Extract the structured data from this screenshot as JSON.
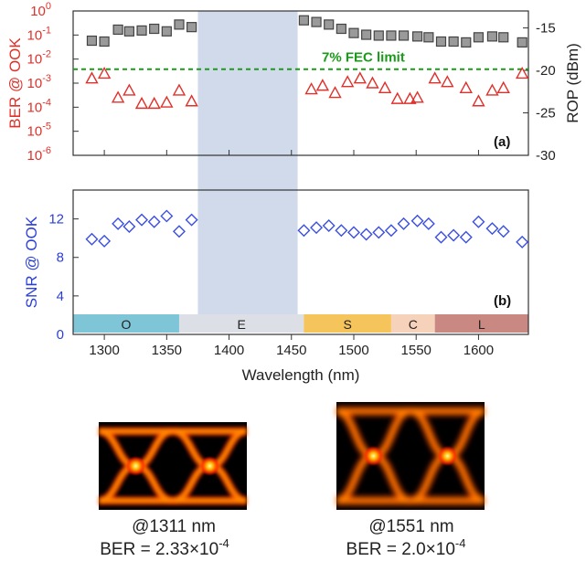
{
  "chart_data": [
    {
      "type": "scatter",
      "panel": "(a)",
      "xlim": [
        1275,
        1640
      ],
      "x_ticks": [
        1300,
        1350,
        1400,
        1450,
        1500,
        1550,
        1600
      ],
      "ylabel_left": "BER @ OOK",
      "ylabel_right": "ROP (dBm)",
      "yleft_log_range": [
        -6,
        0
      ],
      "yleft_tick_exponents": [
        -6,
        -5,
        -4,
        -3,
        -2,
        -1,
        0
      ],
      "yright_range": [
        -30,
        -13
      ],
      "yright_ticks": [
        -15,
        -20,
        -25,
        -30
      ],
      "shaded_band": [
        1375,
        1455
      ],
      "threshold": {
        "label": "7% FEC limit",
        "value_log10": -2.42,
        "color": "#1a9a1a"
      },
      "series": [
        {
          "axis": "left",
          "marker": "triangle",
          "color": "#e0302a",
          "x": [
            1290,
            1300,
            1311,
            1320,
            1330,
            1340,
            1350,
            1360,
            1370,
            1466,
            1475,
            1485,
            1495,
            1505,
            1515,
            1525,
            1535,
            1545,
            1551,
            1565,
            1575,
            1590,
            1600,
            1611,
            1620,
            1635
          ],
          "log10_y": [
            -2.8,
            -2.6,
            -3.6,
            -3.3,
            -3.85,
            -3.85,
            -3.8,
            -3.3,
            -3.75,
            -3.25,
            -3.1,
            -3.4,
            -2.95,
            -2.8,
            -3.0,
            -3.2,
            -3.65,
            -3.65,
            -3.6,
            -2.8,
            -2.95,
            -3.2,
            -3.75,
            -3.3,
            -3.2,
            -2.6
          ]
        },
        {
          "axis": "right",
          "marker": "square",
          "color": "#444444",
          "x": [
            1290,
            1300,
            1311,
            1320,
            1330,
            1340,
            1350,
            1360,
            1370,
            1460,
            1470,
            1480,
            1490,
            1500,
            1510,
            1520,
            1530,
            1540,
            1551,
            1560,
            1570,
            1580,
            1590,
            1600,
            1611,
            1620,
            1635
          ],
          "y": [
            -16.5,
            -16.6,
            -15.2,
            -15.4,
            -15.3,
            -15.1,
            -15.4,
            -14.6,
            -14.9,
            -14.1,
            -14.3,
            -14.6,
            -15.1,
            -15.6,
            -15.8,
            -15.9,
            -15.9,
            -15.9,
            -16.0,
            -16.1,
            -16.6,
            -16.6,
            -16.7,
            -16.1,
            -16.0,
            -16.1,
            -16.7
          ]
        }
      ]
    },
    {
      "type": "scatter",
      "panel": "(b)",
      "xlabel": "Wavelength (nm)",
      "ylabel": "SNR @ OOK",
      "ylim": [
        0,
        15
      ],
      "y_ticks": [
        0,
        4,
        8,
        12
      ],
      "series": [
        {
          "marker": "diamond",
          "color": "#3b4fe0",
          "x": [
            1290,
            1300,
            1311,
            1320,
            1330,
            1340,
            1350,
            1360,
            1370,
            1460,
            1470,
            1480,
            1490,
            1500,
            1510,
            1520,
            1530,
            1540,
            1551,
            1560,
            1570,
            1580,
            1590,
            1600,
            1611,
            1620,
            1635
          ],
          "y": [
            9.9,
            9.7,
            11.5,
            11.2,
            11.9,
            11.7,
            12.3,
            10.7,
            11.9,
            10.8,
            11.1,
            11.3,
            10.8,
            10.6,
            10.4,
            10.6,
            10.8,
            11.5,
            11.8,
            11.5,
            10.1,
            10.3,
            10.1,
            11.7,
            11.0,
            10.7,
            9.6
          ]
        }
      ],
      "bands": [
        {
          "label": "O",
          "range": [
            1275,
            1360
          ],
          "color": "#7ec5d8"
        },
        {
          "label": "E",
          "range": [
            1360,
            1460
          ],
          "color": "#dcdfe6"
        },
        {
          "label": "S",
          "range": [
            1460,
            1530
          ],
          "color": "#f5c45a"
        },
        {
          "label": "C",
          "range": [
            1530,
            1565
          ],
          "color": "#f7d2ba"
        },
        {
          "label": "L",
          "range": [
            1565,
            1640
          ],
          "color": "#c98882"
        }
      ]
    }
  ],
  "eye_diagrams": [
    {
      "caption_wavelength": "@1311 nm",
      "caption_ber": "BER = 2.33×10",
      "ber_exp": "-4"
    },
    {
      "caption_wavelength": "@1551 nm",
      "caption_ber": "BER = 2.0×10",
      "ber_exp": "-4"
    }
  ]
}
